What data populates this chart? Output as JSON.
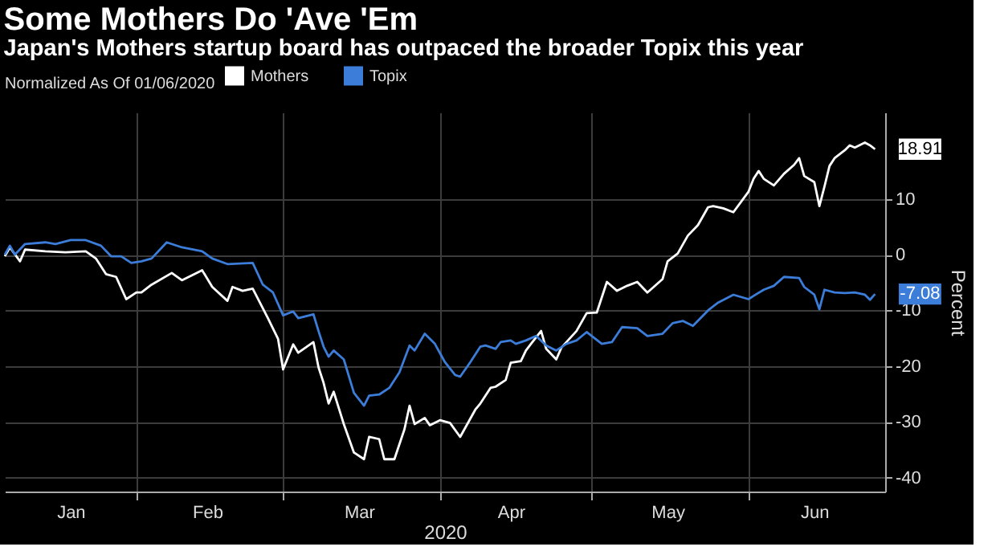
{
  "chart_data": {
    "type": "line",
    "title": "Some Mothers Do 'Ave 'Em",
    "subtitle": "Japan's Mothers startup board has outpaced the broader Topix this year",
    "legend_title": "Normalized As Of 01/06/2020",
    "xlabel": "2020",
    "ylabel": "Percent",
    "series": [
      {
        "name": "Mothers",
        "color": "#ffffff",
        "x": [
          "2020-01-06",
          "2020-01-07",
          "2020-01-09",
          "2020-01-10",
          "2020-01-14",
          "2020-01-18",
          "2020-01-22",
          "2020-01-24",
          "2020-01-26",
          "2020-01-28",
          "2020-01-30",
          "2020-02-01",
          "2020-02-02",
          "2020-02-04",
          "2020-02-08",
          "2020-02-10",
          "2020-02-14",
          "2020-02-16",
          "2020-02-19",
          "2020-02-20",
          "2020-02-22",
          "2020-02-24",
          "2020-02-27",
          "2020-02-29",
          "2020-03-01",
          "2020-03-03",
          "2020-03-04",
          "2020-03-07",
          "2020-03-08",
          "2020-03-09",
          "2020-03-10",
          "2020-03-11",
          "2020-03-13",
          "2020-03-15",
          "2020-03-17",
          "2020-03-18",
          "2020-03-20",
          "2020-03-21",
          "2020-03-23",
          "2020-03-25",
          "2020-03-26",
          "2020-03-27",
          "2020-03-29",
          "2020-03-30",
          "2020-04-01",
          "2020-04-03",
          "2020-04-05",
          "2020-04-08",
          "2020-04-09",
          "2020-04-11",
          "2020-04-12",
          "2020-04-14",
          "2020-04-15",
          "2020-04-17",
          "2020-04-18",
          "2020-04-19",
          "2020-04-21",
          "2020-04-22",
          "2020-04-24",
          "2020-04-25",
          "2020-04-28",
          "2020-04-30",
          "2020-05-02",
          "2020-05-04",
          "2020-05-06",
          "2020-05-08",
          "2020-05-10",
          "2020-05-12",
          "2020-05-15",
          "2020-05-16",
          "2020-05-18",
          "2020-05-20",
          "2020-05-22",
          "2020-05-24",
          "2020-05-25",
          "2020-05-27",
          "2020-05-29",
          "2020-06-01",
          "2020-06-02",
          "2020-06-03",
          "2020-06-04",
          "2020-06-06",
          "2020-06-08",
          "2020-06-10",
          "2020-06-11",
          "2020-06-12",
          "2020-06-14",
          "2020-06-15",
          "2020-06-16",
          "2020-06-17",
          "2020-06-18",
          "2020-06-20",
          "2020-06-21",
          "2020-06-22",
          "2020-06-24",
          "2020-06-25",
          "2020-06-26"
        ],
        "values": [
          -0.3,
          1.3,
          -1.2,
          0.9,
          0.6,
          0.4,
          0.6,
          -0.7,
          -3.5,
          -4.0,
          -8.0,
          -6.8,
          -6.8,
          -5.4,
          -3.3,
          -4.6,
          -2.8,
          -5.8,
          -8.3,
          -5.8,
          -6.5,
          -6.1,
          -11.4,
          -15.1,
          -20.6,
          -16.1,
          -17.6,
          -15.7,
          -20.2,
          -23.0,
          -26.7,
          -24.6,
          -30.4,
          -35.5,
          -36.7,
          -32.7,
          -33.1,
          -36.7,
          -36.7,
          -31.3,
          -27.1,
          -30.4,
          -29.3,
          -30.6,
          -29.7,
          -30.2,
          -32.7,
          -27.8,
          -26.7,
          -23.9,
          -23.7,
          -22.5,
          -19.4,
          -19.1,
          -17.2,
          -16.0,
          -13.7,
          -16.9,
          -18.8,
          -16.7,
          -13.7,
          -10.5,
          -10.4,
          -4.9,
          -6.5,
          -5.6,
          -4.9,
          -6.8,
          -4.4,
          -1.2,
          0.2,
          3.4,
          5.3,
          8.5,
          8.7,
          8.3,
          7.6,
          11.3,
          13.6,
          15.0,
          13.6,
          12.4,
          14.5,
          16.1,
          17.3,
          14.1,
          13.0,
          8.7,
          12.2,
          15.9,
          17.3,
          18.7,
          19.6,
          19.2,
          20.1,
          19.6,
          18.91
        ]
      },
      {
        "name": "Topix",
        "color": "#3b7dd8",
        "x": [
          "2020-01-06",
          "2020-01-07",
          "2020-01-08",
          "2020-01-10",
          "2020-01-14",
          "2020-01-16",
          "2020-01-19",
          "2020-01-22",
          "2020-01-25",
          "2020-01-27",
          "2020-01-29",
          "2020-01-31",
          "2020-02-02",
          "2020-02-04",
          "2020-02-07",
          "2020-02-10",
          "2020-02-14",
          "2020-02-16",
          "2020-02-19",
          "2020-02-24",
          "2020-02-26",
          "2020-02-28",
          "2020-03-01",
          "2020-03-03",
          "2020-03-04",
          "2020-03-07",
          "2020-03-08",
          "2020-03-09",
          "2020-03-10",
          "2020-03-11",
          "2020-03-13",
          "2020-03-15",
          "2020-03-17",
          "2020-03-18",
          "2020-03-20",
          "2020-03-22",
          "2020-03-24",
          "2020-03-26",
          "2020-03-27",
          "2020-03-29",
          "2020-03-31",
          "2020-04-02",
          "2020-04-04",
          "2020-04-05",
          "2020-04-07",
          "2020-04-09",
          "2020-04-10",
          "2020-04-12",
          "2020-04-13",
          "2020-04-15",
          "2020-04-16",
          "2020-04-18",
          "2020-04-20",
          "2020-04-22",
          "2020-04-24",
          "2020-04-26",
          "2020-04-28",
          "2020-04-30",
          "2020-05-03",
          "2020-05-05",
          "2020-05-07",
          "2020-05-10",
          "2020-05-12",
          "2020-05-15",
          "2020-05-17",
          "2020-05-19",
          "2020-05-21",
          "2020-05-24",
          "2020-05-26",
          "2020-05-29",
          "2020-06-01",
          "2020-06-02",
          "2020-06-04",
          "2020-06-06",
          "2020-06-08",
          "2020-06-11",
          "2020-06-12",
          "2020-06-14",
          "2020-06-15",
          "2020-06-16",
          "2020-06-18",
          "2020-06-20",
          "2020-06-22",
          "2020-06-24",
          "2020-06-25",
          "2020-06-26"
        ],
        "values": [
          0,
          1.6,
          0,
          1.9,
          2.2,
          1.9,
          2.6,
          2.6,
          1.6,
          -0.3,
          -0.3,
          -1.5,
          -1.2,
          -0.7,
          2.2,
          1.3,
          0.6,
          -0.7,
          -1.7,
          -1.5,
          -5.4,
          -6.8,
          -10.9,
          -10.2,
          -11.4,
          -10.7,
          -13.7,
          -16.5,
          -18.3,
          -17.2,
          -18.8,
          -24.8,
          -27.1,
          -25.3,
          -25.1,
          -23.9,
          -21.1,
          -16.3,
          -17.2,
          -14.2,
          -16.0,
          -19.3,
          -21.6,
          -21.9,
          -19.3,
          -16.5,
          -16.3,
          -16.9,
          -15.7,
          -15.4,
          -16.0,
          -15.4,
          -14.6,
          -16.3,
          -17.2,
          -16.0,
          -15.4,
          -13.9,
          -16.0,
          -15.7,
          -13.0,
          -13.2,
          -14.6,
          -14.2,
          -12.3,
          -11.9,
          -12.8,
          -10.0,
          -8.6,
          -7.2,
          -8.0,
          -7.4,
          -6.3,
          -5.6,
          -4.0,
          -4.2,
          -5.8,
          -7.2,
          -9.8,
          -6.3,
          -6.8,
          -6.9,
          -6.8,
          -7.2,
          -8.1,
          -7.08
        ]
      }
    ],
    "xlim": [
      "2020-01-06",
      "2020-06-28"
    ],
    "xticks": [
      {
        "value": "2020-02-01",
        "label": null
      },
      {
        "value": "2020-03-01",
        "label": null
      },
      {
        "value": "2020-04-01",
        "label": null
      },
      {
        "value": "2020-05-01",
        "label": null
      },
      {
        "value": "2020-06-01",
        "label": null
      },
      {
        "value": "2020-01-19",
        "label": "Jan"
      },
      {
        "value": "2020-02-15",
        "label": "Feb"
      },
      {
        "value": "2020-03-16",
        "label": "Mar"
      },
      {
        "value": "2020-04-15",
        "label": "Apr"
      },
      {
        "value": "2020-05-16",
        "label": "May"
      },
      {
        "value": "2020-06-14",
        "label": "Jun"
      }
    ],
    "ylim": [
      -42.5,
      25.5
    ],
    "yticks": [
      -40,
      -30,
      -20,
      -10,
      0,
      10
    ],
    "grid": true,
    "legend": "top left",
    "marker": "none",
    "line_style": "solid",
    "annotations": [
      {
        "text": "18.91",
        "x": "2020-06-26",
        "y": 18.91
      },
      {
        "text": "-7.08",
        "x": "2020-06-26",
        "y": -7.08
      }
    ]
  }
}
